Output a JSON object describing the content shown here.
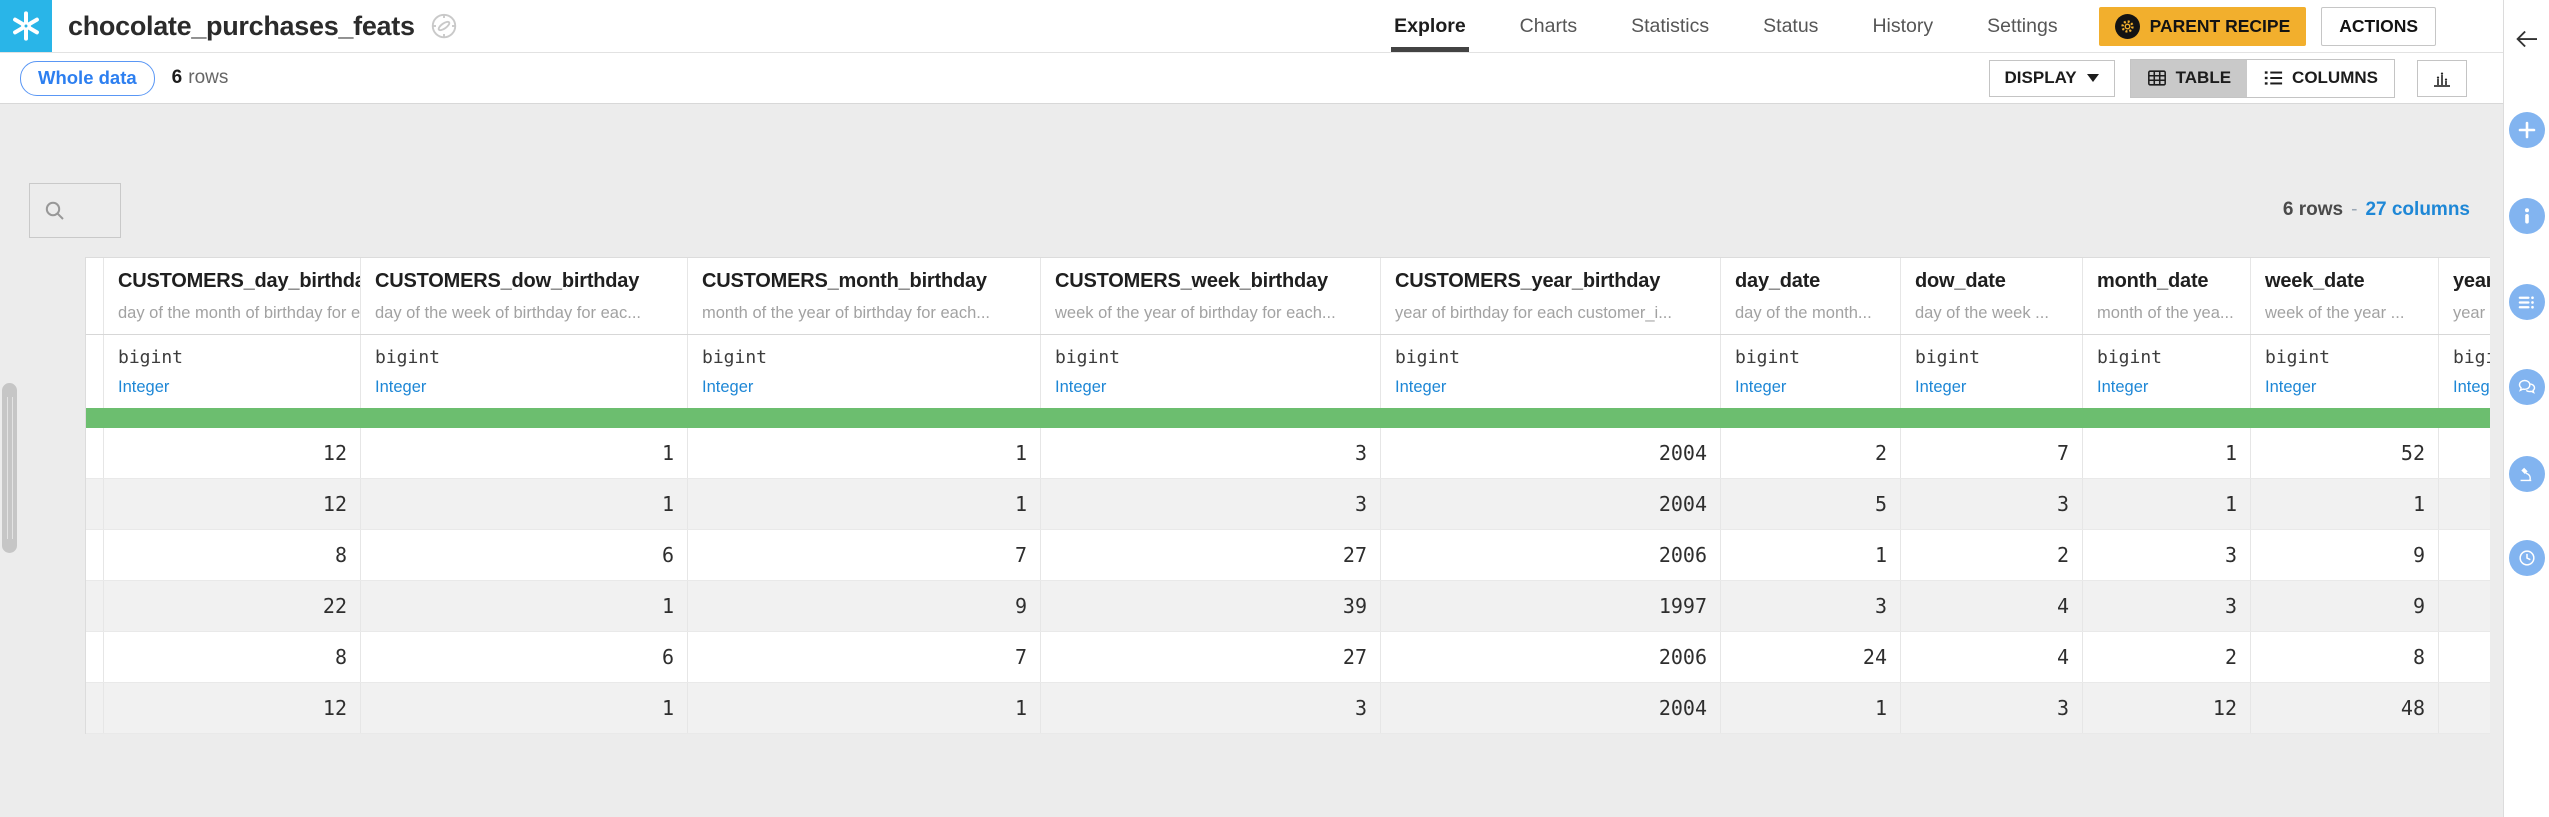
{
  "header": {
    "title": "chocolate_purchases_feats",
    "tabs": [
      {
        "label": "Explore",
        "active": true
      },
      {
        "label": "Charts",
        "active": false
      },
      {
        "label": "Statistics",
        "active": false
      },
      {
        "label": "Status",
        "active": false
      },
      {
        "label": "History",
        "active": false
      },
      {
        "label": "Settings",
        "active": false
      }
    ],
    "parent_recipe_label": "PARENT RECIPE",
    "actions_label": "ACTIONS"
  },
  "toolbar": {
    "sample_label": "Whole data",
    "rows_count": "6",
    "rows_word": "rows",
    "display_label": "DISPLAY",
    "table_label": "TABLE",
    "columns_label": "COLUMNS"
  },
  "table_info": {
    "rows_text": "6 rows",
    "separator": "-",
    "columns_text": "27 columns"
  },
  "table": {
    "columns": [
      {
        "name": "CUSTOMERS_day_birthday",
        "description": "day of the month of birthday for e...",
        "storage_type": "bigint",
        "meaning": "Integer"
      },
      {
        "name": "CUSTOMERS_dow_birthday",
        "description": "day of the week of birthday for eac...",
        "storage_type": "bigint",
        "meaning": "Integer"
      },
      {
        "name": "CUSTOMERS_month_birthday",
        "description": "month of the year of birthday for each...",
        "storage_type": "bigint",
        "meaning": "Integer"
      },
      {
        "name": "CUSTOMERS_week_birthday",
        "description": "week of the year of birthday for each...",
        "storage_type": "bigint",
        "meaning": "Integer"
      },
      {
        "name": "CUSTOMERS_year_birthday",
        "description": "year of birthday for each customer_i...",
        "storage_type": "bigint",
        "meaning": "Integer"
      },
      {
        "name": "day_date",
        "description": "day of the month...",
        "storage_type": "bigint",
        "meaning": "Integer"
      },
      {
        "name": "dow_date",
        "description": "day of the week ...",
        "storage_type": "bigint",
        "meaning": "Integer"
      },
      {
        "name": "month_date",
        "description": "month of the yea...",
        "storage_type": "bigint",
        "meaning": "Integer"
      },
      {
        "name": "week_date",
        "description": "week of the year ...",
        "storage_type": "bigint",
        "meaning": "Integer"
      },
      {
        "name": "year_date",
        "description": "year",
        "storage_type": "bigint",
        "meaning": "Integer"
      }
    ],
    "rows": [
      [
        "12",
        "1",
        "1",
        "3",
        "2004",
        "2",
        "7",
        "1",
        "52",
        ""
      ],
      [
        "12",
        "1",
        "1",
        "3",
        "2004",
        "5",
        "3",
        "1",
        "1",
        ""
      ],
      [
        "8",
        "6",
        "7",
        "27",
        "2006",
        "1",
        "2",
        "3",
        "9",
        ""
      ],
      [
        "22",
        "1",
        "9",
        "39",
        "1997",
        "3",
        "4",
        "3",
        "9",
        ""
      ],
      [
        "8",
        "6",
        "7",
        "27",
        "2006",
        "24",
        "4",
        "2",
        "8",
        ""
      ],
      [
        "12",
        "1",
        "1",
        "3",
        "2004",
        "1",
        "3",
        "12",
        "48",
        ""
      ]
    ]
  },
  "right_panel_icons": [
    "arrow-left",
    "plus",
    "info",
    "schema",
    "discussions",
    "lab",
    "history-clock"
  ],
  "icons": {
    "logo": "snowflake-logo",
    "title_status": "compass-icon",
    "display_caret": "caret-down-icon",
    "table_view": "grid-icon",
    "columns_view": "list-icon",
    "quick_chart": "bar-chart-icon",
    "filter": "search-icon"
  },
  "colors": {
    "snowflake_blue": "#29B5E8",
    "recipe_orange": "#F2AF2D",
    "green_bar": "#6CBE6F",
    "link_blue": "#1E87D6",
    "pill_blue": "#2D7FF0",
    "panel_blue": "#82B4F0",
    "underline_dark": "#434343"
  }
}
